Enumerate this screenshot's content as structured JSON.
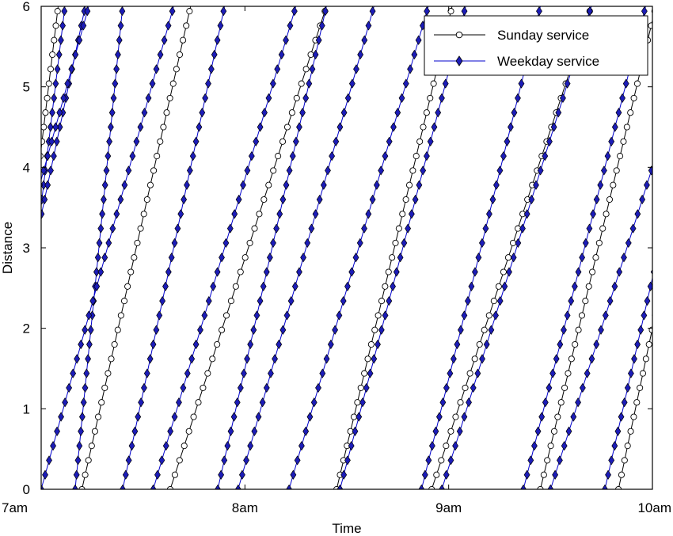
{
  "chart_data": {
    "type": "line",
    "xlabel": "Time",
    "ylabel": "Distance",
    "xlim": [
      0,
      180
    ],
    "ylim": [
      0,
      6
    ],
    "x_unit": "minutes after 7am",
    "x_ticks": [
      {
        "value": 0,
        "label": "7am"
      },
      {
        "value": 60,
        "label": "8am"
      },
      {
        "value": 120,
        "label": "9am"
      },
      {
        "value": 180,
        "label": "10am"
      }
    ],
    "y_ticks": [
      0,
      1,
      2,
      3,
      4,
      5,
      6
    ],
    "legend_position": "top-right",
    "series": [
      {
        "name": "Sunday service",
        "color": "#000000",
        "marker": "open-circle",
        "trips": [
          {
            "start": -12,
            "end": 5
          },
          {
            "start": 12,
            "end": 44
          },
          {
            "start": 38,
            "end": 84
          },
          {
            "start": 87,
            "end": 121
          },
          {
            "start": 115,
            "end": 162
          },
          {
            "start": 147,
            "end": 181
          },
          {
            "start": 170,
            "end": 200
          }
        ]
      },
      {
        "name": "Weekday service",
        "color": "#0000cc",
        "marker": "filled-diamond",
        "trips": [
          {
            "start": -10,
            "end": 7
          },
          {
            "start": -17,
            "end": 13
          },
          {
            "start": -25,
            "end": 14
          },
          {
            "start": 10,
            "end": 24
          },
          {
            "start": 0,
            "end": 39
          },
          {
            "start": 24,
            "end": 54
          },
          {
            "start": 33,
            "end": 75
          },
          {
            "start": 52,
            "end": 84
          },
          {
            "start": 58,
            "end": 98
          },
          {
            "start": 73,
            "end": 114
          },
          {
            "start": 88,
            "end": 125
          },
          {
            "start": 112,
            "end": 147
          },
          {
            "start": 118,
            "end": 162
          },
          {
            "start": 142,
            "end": 178
          },
          {
            "start": 150,
            "end": 195
          },
          {
            "start": 166,
            "end": 198
          }
        ]
      }
    ]
  }
}
